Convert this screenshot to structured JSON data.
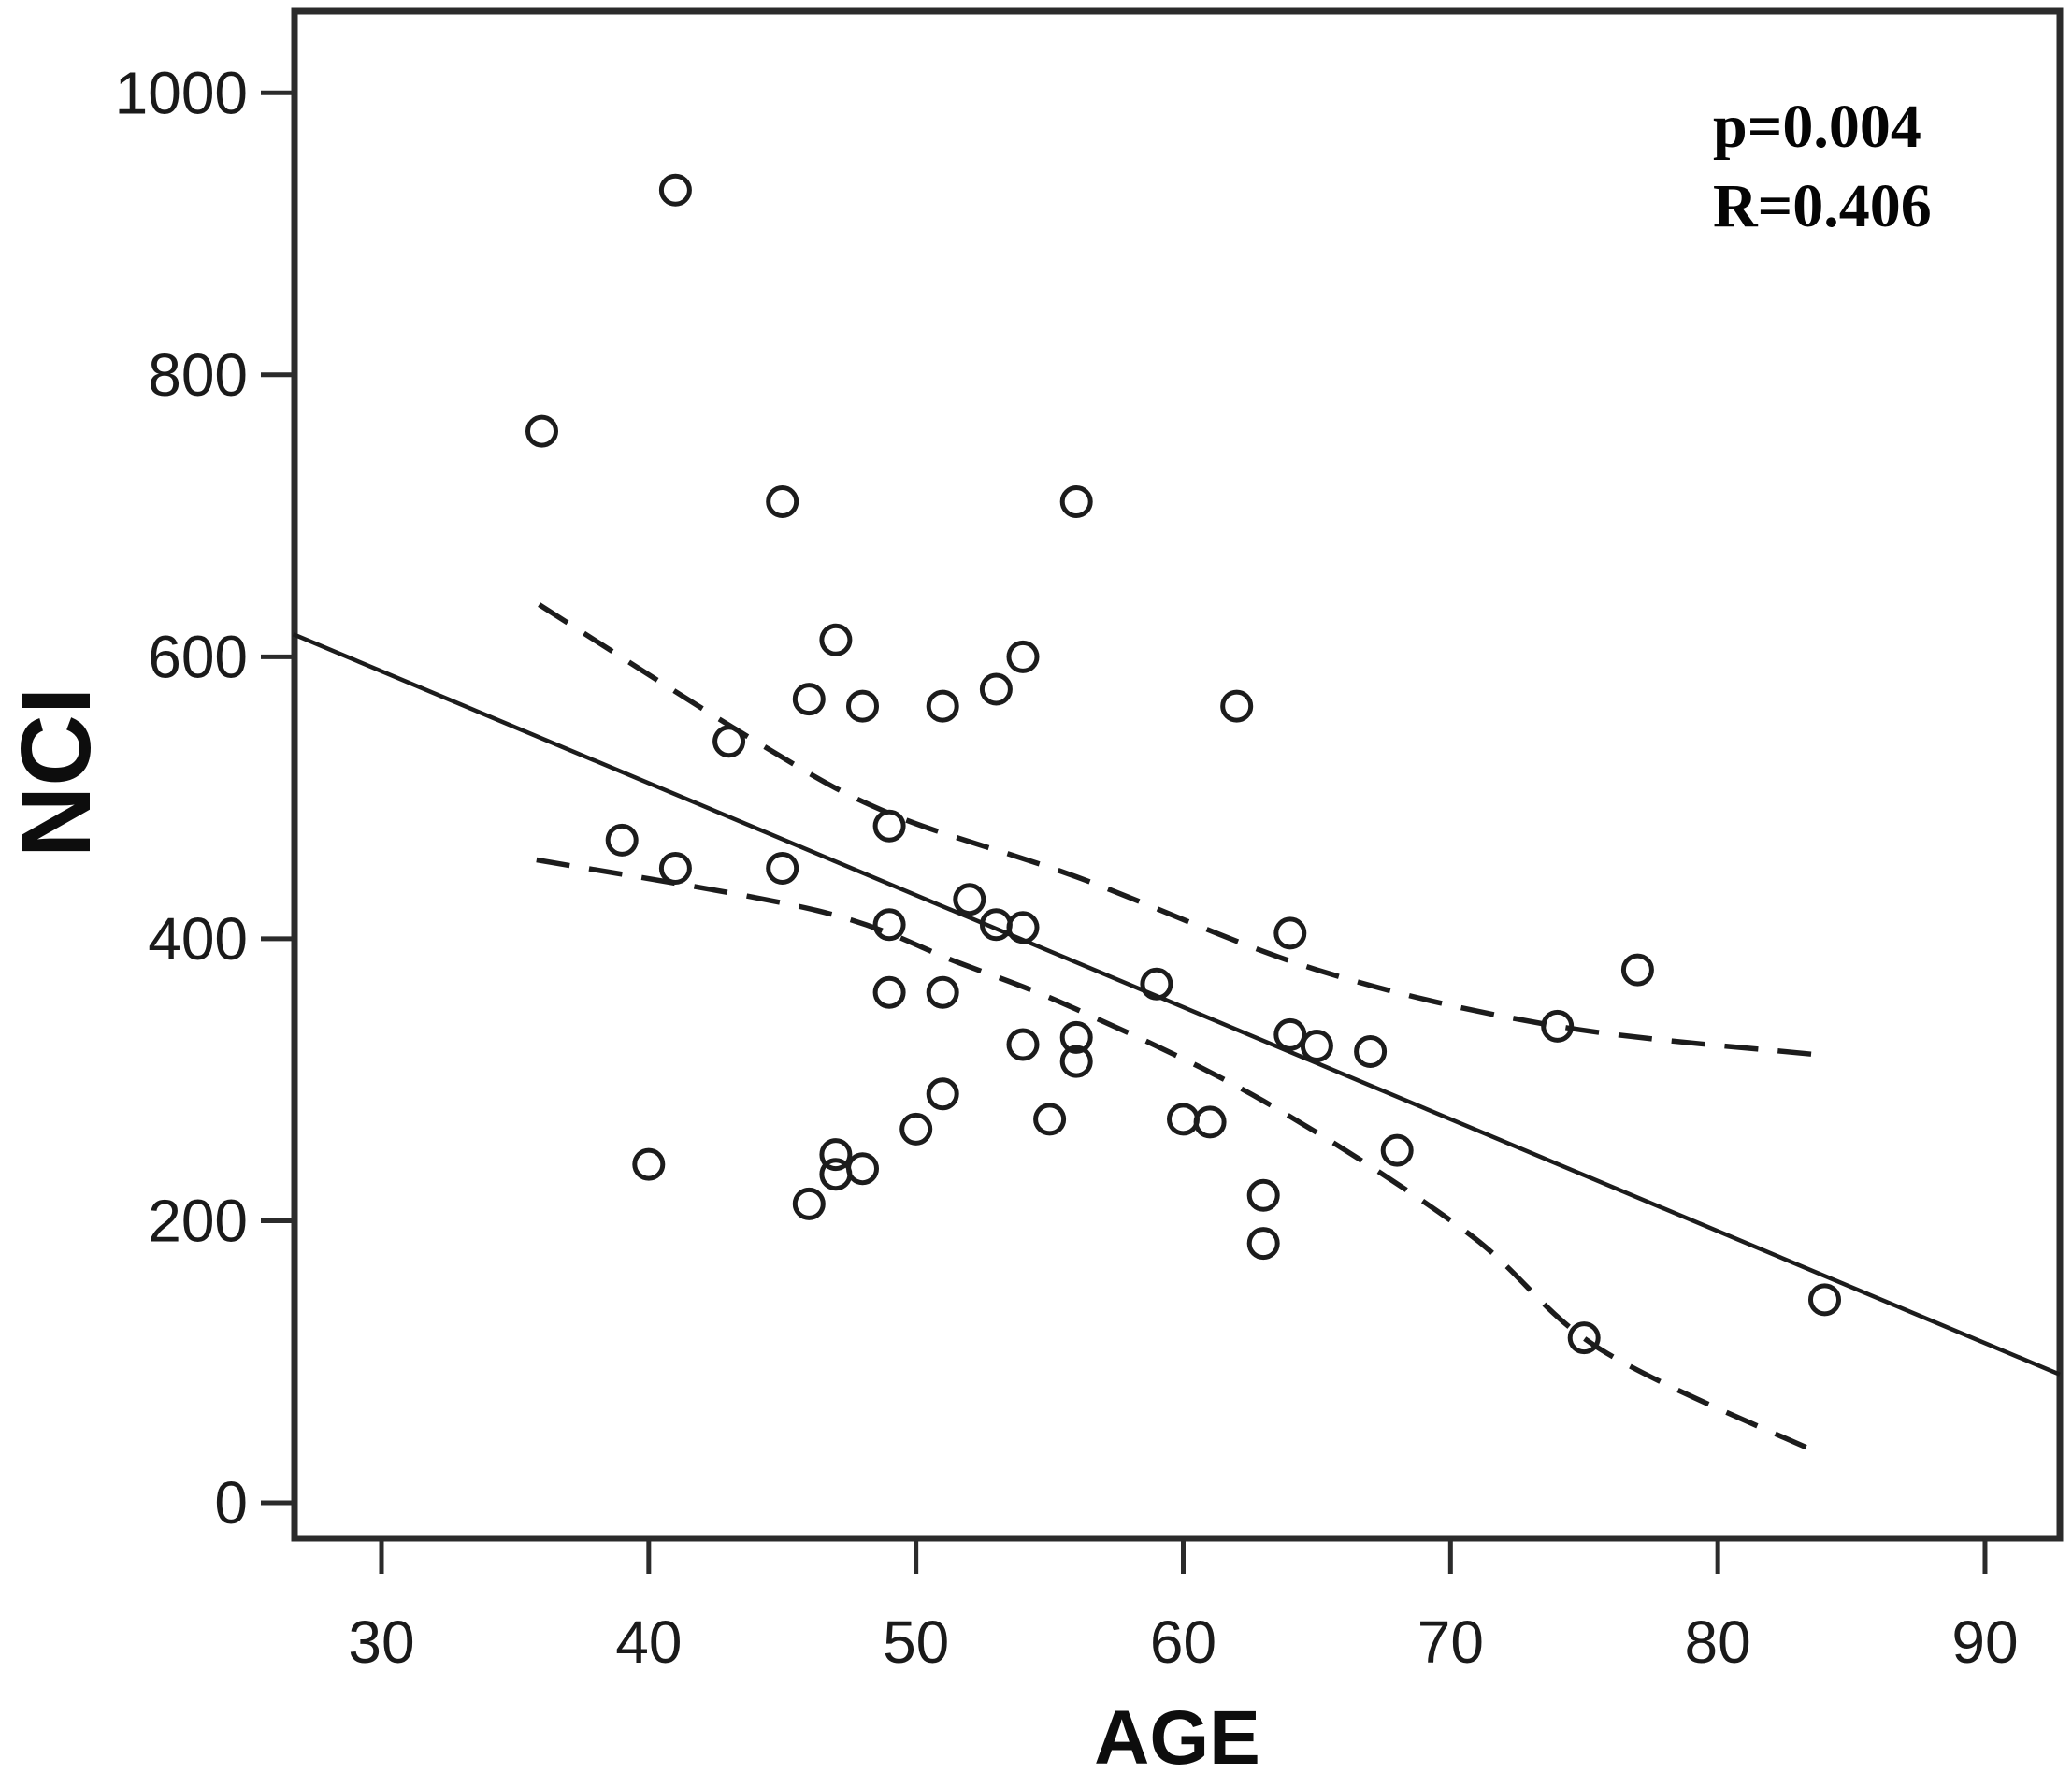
{
  "chart_data": {
    "type": "scatter",
    "title": "",
    "xlabel": "AGE",
    "ylabel": "NCI",
    "x_ticks": [
      30,
      40,
      50,
      60,
      70,
      80,
      90
    ],
    "y_ticks": [
      1000,
      800,
      600,
      400,
      200,
      0
    ],
    "x_axis_range": [
      26.7,
      92.8
    ],
    "y_axis_range": [
      -25,
      1062
    ],
    "grid": false,
    "legend": "none",
    "marker": {
      "shape": "open-circle",
      "radius_px": 15,
      "stroke_px": 5
    },
    "points": [
      [
        41,
        931
      ],
      [
        36,
        760
      ],
      [
        45,
        710
      ],
      [
        56,
        710
      ],
      [
        47,
        612
      ],
      [
        54,
        600
      ],
      [
        53,
        577
      ],
      [
        46,
        570
      ],
      [
        48,
        565
      ],
      [
        51,
        565
      ],
      [
        62,
        565
      ],
      [
        43,
        540
      ],
      [
        49,
        480
      ],
      [
        39,
        470
      ],
      [
        41,
        450
      ],
      [
        45,
        450
      ],
      [
        52,
        428
      ],
      [
        49,
        410
      ],
      [
        53,
        410
      ],
      [
        54,
        408
      ],
      [
        64,
        404
      ],
      [
        77,
        378
      ],
      [
        59,
        368
      ],
      [
        49,
        362
      ],
      [
        51,
        362
      ],
      [
        74,
        338
      ],
      [
        64,
        332
      ],
      [
        56,
        330
      ],
      [
        65,
        324
      ],
      [
        54,
        325
      ],
      [
        67,
        320
      ],
      [
        56,
        313
      ],
      [
        51,
        290
      ],
      [
        55,
        272
      ],
      [
        60,
        272
      ],
      [
        61,
        270
      ],
      [
        50,
        265
      ],
      [
        68,
        250
      ],
      [
        47,
        247
      ],
      [
        40,
        240
      ],
      [
        48,
        237
      ],
      [
        47,
        233
      ],
      [
        63,
        218
      ],
      [
        46,
        212
      ],
      [
        63,
        184
      ],
      [
        84,
        144
      ],
      [
        75,
        117
      ]
    ],
    "regression_line": {
      "x": [
        26.7,
        92.8
      ],
      "y": [
        616,
        91
      ],
      "style": "solid"
    },
    "ci_upper": [
      [
        35.9,
        637
      ],
      [
        44,
        540
      ],
      [
        49,
        489
      ],
      [
        56,
        444
      ],
      [
        65,
        378
      ],
      [
        74,
        338
      ],
      [
        83.6,
        318
      ]
    ],
    "ci_lower": [
      [
        35.8,
        456
      ],
      [
        46.3,
        420
      ],
      [
        51.6,
        383
      ],
      [
        56,
        350
      ],
      [
        63,
        285
      ],
      [
        70.6,
        192
      ],
      [
        75.6,
        109
      ],
      [
        83.8,
        35
      ]
    ],
    "annotation": {
      "p_label": "p=0.004",
      "r_label": "R=0.406"
    },
    "colors": {
      "ink": "#1c1c1c",
      "border": "#2b2b2b",
      "background": "#ffffff",
      "text": "#0d0d0d"
    }
  }
}
